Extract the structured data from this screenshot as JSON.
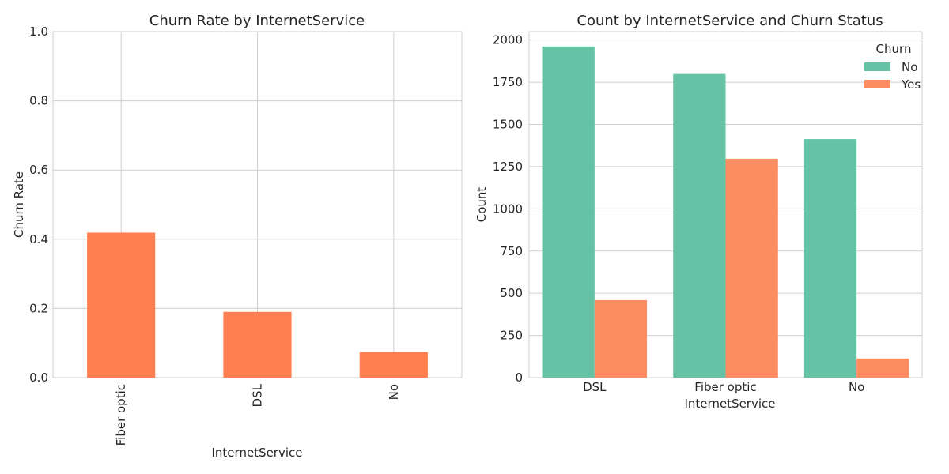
{
  "chart_data": [
    {
      "type": "bar",
      "title": "Churn Rate by InternetService",
      "xlabel": "InternetService",
      "ylabel": "Churn Rate",
      "categories": [
        "Fiber optic",
        "DSL",
        "No"
      ],
      "values": [
        0.419,
        0.19,
        0.074
      ],
      "ylim": [
        0,
        1.0
      ],
      "yticks": [
        "0.0",
        "0.2",
        "0.4",
        "0.6",
        "0.8",
        "1.0"
      ],
      "ytick_values": [
        0,
        0.2,
        0.4,
        0.6,
        0.8,
        1.0
      ],
      "grid": true,
      "xtick_rotation": "vertical",
      "color": "#ff7f50"
    },
    {
      "type": "bar",
      "title": "Count by InternetService and Churn Status",
      "xlabel": "InternetService",
      "ylabel": "Count",
      "categories": [
        "DSL",
        "Fiber optic",
        "No"
      ],
      "series": [
        {
          "name": "No",
          "values": [
            1962,
            1799,
            1413
          ],
          "color": "#66c2a5"
        },
        {
          "name": "Yes",
          "values": [
            459,
            1297,
            113
          ],
          "color": "#fc8d62"
        }
      ],
      "ylim": [
        0,
        2050
      ],
      "yticks": [
        "0",
        "250",
        "500",
        "750",
        "1000",
        "1250",
        "1500",
        "1750",
        "2000"
      ],
      "ytick_values": [
        0,
        250,
        500,
        750,
        1000,
        1250,
        1500,
        1750,
        2000
      ],
      "grid": true,
      "legend": {
        "title": "Churn",
        "placement": "top-right"
      }
    }
  ]
}
